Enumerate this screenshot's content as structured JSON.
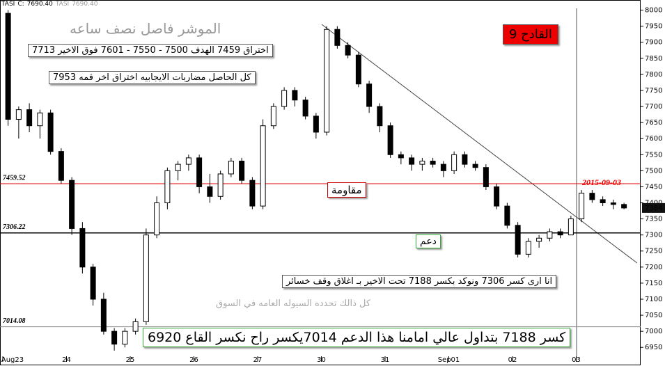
{
  "chart_data": {
    "type": "candlestick",
    "symbol": "TASI",
    "close_label": "C:",
    "close_value": {
      "value": 7690.4,
      "label": "7690.40"
    },
    "symbol2": "TASI",
    "close_value2": {
      "value": 7690.4,
      "label": "7690.40"
    },
    "open": [
      7990,
      7660,
      7690,
      7640,
      7680,
      7560,
      7470,
      7320,
      7200,
      7100,
      7000,
      6960,
      7000,
      7030,
      7300,
      7400,
      7500,
      7520,
      7540,
      7450,
      7420,
      7490,
      7530,
      7470,
      7390,
      7640,
      7700,
      7750,
      7720,
      7670,
      7620,
      7940,
      7890,
      7860,
      7770,
      7700,
      7640,
      7550,
      7540,
      7520,
      7530,
      7520,
      7500,
      7550,
      7520,
      7510,
      7450,
      7390,
      7330,
      7240,
      7280,
      7290,
      7310,
      7300,
      7350,
      7430,
      7410,
      7400,
      7395
    ],
    "high": [
      8000,
      7700,
      7710,
      7690,
      7690,
      7570,
      7480,
      7340,
      7210,
      7120,
      7010,
      7010,
      7040,
      7320,
      7420,
      7510,
      7530,
      7550,
      7550,
      7490,
      7500,
      7540,
      7540,
      7480,
      7660,
      7710,
      7760,
      7760,
      7730,
      7680,
      7950,
      7950,
      7900,
      7870,
      7780,
      7710,
      7650,
      7560,
      7550,
      7540,
      7540,
      7530,
      7560,
      7560,
      7530,
      7520,
      7460,
      7400,
      7340,
      7290,
      7300,
      7320,
      7320,
      7360,
      7440,
      7440,
      7420,
      7410,
      7400
    ],
    "low": [
      7640,
      7600,
      7620,
      7600,
      7550,
      7460,
      7300,
      7180,
      7080,
      6990,
      6940,
      6950,
      6990,
      7020,
      7290,
      7380,
      7470,
      7500,
      7430,
      7400,
      7410,
      7480,
      7460,
      7380,
      7380,
      7630,
      7690,
      7700,
      7660,
      7600,
      7610,
      7880,
      7850,
      7760,
      7680,
      7620,
      7540,
      7520,
      7500,
      7500,
      7510,
      7480,
      7490,
      7510,
      7500,
      7440,
      7380,
      7320,
      7230,
      7230,
      7260,
      7280,
      7290,
      7300,
      7340,
      7400,
      7390,
      7380,
      7380
    ],
    "close": [
      7660,
      7690,
      7640,
      7680,
      7560,
      7470,
      7320,
      7200,
      7100,
      7000,
      6960,
      7000,
      7030,
      7300,
      7400,
      7500,
      7520,
      7540,
      7450,
      7420,
      7490,
      7530,
      7470,
      7390,
      7640,
      7700,
      7750,
      7720,
      7670,
      7620,
      7940,
      7890,
      7860,
      7770,
      7700,
      7640,
      7550,
      7540,
      7520,
      7530,
      7520,
      7500,
      7550,
      7520,
      7510,
      7450,
      7390,
      7330,
      7240,
      7280,
      7290,
      7310,
      7300,
      7350,
      7430,
      7410,
      7400,
      7395,
      7384
    ],
    "xticks": [
      {
        "value": 0,
        "label": "Aug23"
      },
      {
        "value": 6,
        "label": "24"
      },
      {
        "value": 12,
        "label": "25"
      },
      {
        "value": 18,
        "label": "26"
      },
      {
        "value": 24,
        "label": "27"
      },
      {
        "value": 30,
        "label": "30"
      },
      {
        "value": 36,
        "label": "31"
      },
      {
        "value": 42,
        "label": "Sep01"
      },
      {
        "value": 48,
        "label": "02"
      },
      {
        "value": 54,
        "label": "03"
      }
    ],
    "ylim": [
      6905,
      8025
    ],
    "yticks": [
      6950,
      7000,
      7050,
      7100,
      7150,
      7200,
      7250,
      7300,
      7350,
      7400,
      7450,
      7500,
      7550,
      7600,
      7650,
      7700,
      7750,
      7800,
      7850,
      7900,
      7950,
      8000
    ],
    "levels": [
      {
        "value": 7459.52,
        "color": "#e00000"
      },
      {
        "value": 7306.22,
        "color": "#000000"
      },
      {
        "value": 7014.08,
        "color": "#888888"
      }
    ],
    "last_price": 7384,
    "date_label": "2015-09-03",
    "annotations": [
      "الموشر فاصل نصف ساعه",
      "اختراق 7459 الهدف 7500 - 7550 - 7601 فوق الاخير 7713",
      "كل الحاصل مضاربات الايجابيه اختراق اخر قمه 7953",
      "القادح 9",
      "مقاومة",
      "دعم",
      "انا ارى كسر 7306 ونوكد بكسر 7188 تحت الاخير بـ اغلاق وقف خسائر",
      "كل ذالك تحدده السيوله العامه في السوق",
      "كسر 7188 بتداول عالي امامنا هذا الدعم 7014يكسر راح نكسر القاع 6920"
    ]
  }
}
